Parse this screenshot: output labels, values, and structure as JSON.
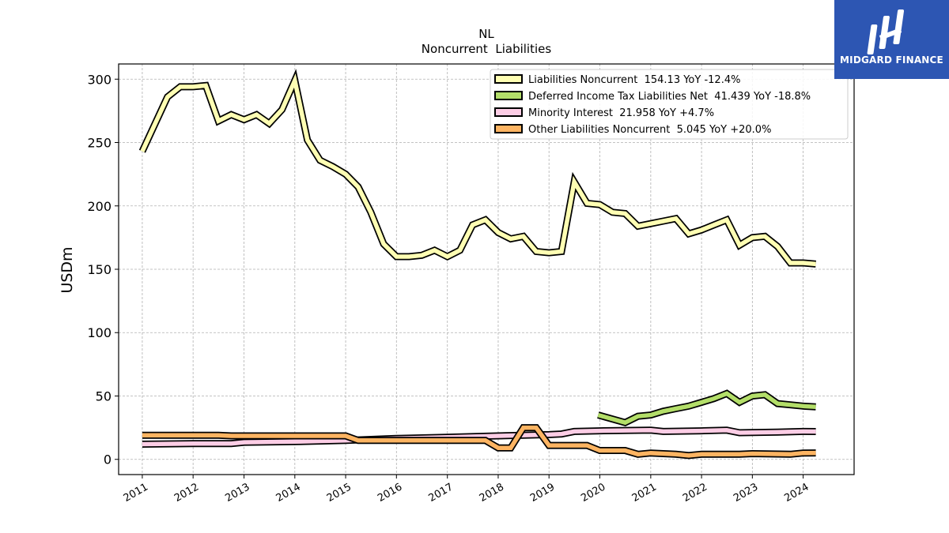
{
  "chart_data": {
    "type": "line",
    "title": "NL",
    "subtitle": "Noncurrent  Liabilities",
    "xlabel": "",
    "ylabel": "USDm",
    "xlim": [
      "2010-07-15",
      "2025-01-01"
    ],
    "ylim": [
      -12,
      312
    ],
    "yticks": [
      0,
      50,
      100,
      150,
      200,
      250,
      300
    ],
    "xticks": [
      "2011",
      "2012",
      "2013",
      "2014",
      "2015",
      "2016",
      "2017",
      "2018",
      "2019",
      "2020",
      "2021",
      "2022",
      "2023",
      "2024"
    ],
    "grid": true,
    "legend_position": "top-right",
    "series": [
      {
        "name": "Liabilities Noncurrent  154.13 YoY -12.4%",
        "color": "#ffffb3",
        "points": [
          [
            "2011-01-01",
            243
          ],
          [
            "2011-07-01",
            286
          ],
          [
            "2011-10-01",
            294
          ],
          [
            "2012-01-01",
            294
          ],
          [
            "2012-04-01",
            295
          ],
          [
            "2012-07-01",
            267
          ],
          [
            "2012-10-01",
            272
          ],
          [
            "2013-01-01",
            268
          ],
          [
            "2013-04-01",
            272
          ],
          [
            "2013-07-01",
            265
          ],
          [
            "2013-10-01",
            276
          ],
          [
            "2014-01-01",
            299
          ],
          [
            "2014-04-01",
            252
          ],
          [
            "2014-07-01",
            236
          ],
          [
            "2014-10-01",
            231
          ],
          [
            "2015-01-01",
            225
          ],
          [
            "2015-04-01",
            215
          ],
          [
            "2015-07-01",
            195
          ],
          [
            "2015-10-01",
            170
          ],
          [
            "2016-01-01",
            160
          ],
          [
            "2016-04-01",
            160
          ],
          [
            "2016-07-01",
            161
          ],
          [
            "2016-10-01",
            165
          ],
          [
            "2017-01-01",
            160
          ],
          [
            "2017-04-01",
            165
          ],
          [
            "2017-07-01",
            185
          ],
          [
            "2017-10-01",
            189
          ],
          [
            "2018-01-01",
            179
          ],
          [
            "2018-04-01",
            174
          ],
          [
            "2018-07-01",
            176
          ],
          [
            "2018-10-01",
            164
          ],
          [
            "2019-01-01",
            163
          ],
          [
            "2019-04-01",
            164
          ],
          [
            "2019-07-01",
            219
          ],
          [
            "2019-10-01",
            202
          ],
          [
            "2020-01-01",
            201
          ],
          [
            "2020-04-01",
            195
          ],
          [
            "2020-07-01",
            194
          ],
          [
            "2020-10-01",
            184
          ],
          [
            "2021-01-01",
            186
          ],
          [
            "2021-04-01",
            188
          ],
          [
            "2021-07-01",
            190
          ],
          [
            "2021-10-01",
            178
          ],
          [
            "2022-01-01",
            181
          ],
          [
            "2022-04-01",
            185
          ],
          [
            "2022-07-01",
            189
          ],
          [
            "2022-10-01",
            169
          ],
          [
            "2023-01-01",
            175
          ],
          [
            "2023-04-01",
            176
          ],
          [
            "2023-07-01",
            168
          ],
          [
            "2023-10-01",
            155
          ],
          [
            "2024-01-01",
            155
          ],
          [
            "2024-04-01",
            154.13
          ]
        ]
      },
      {
        "name": "Deferred Income Tax Liabilities Net  41.439 YoY -18.8%",
        "color": "#b3de69",
        "points": [
          [
            "2019-12-20",
            35
          ],
          [
            "2020-07-01",
            29
          ],
          [
            "2020-10-01",
            34
          ],
          [
            "2021-01-01",
            35
          ],
          [
            "2021-04-01",
            38
          ],
          [
            "2021-07-01",
            40
          ],
          [
            "2021-10-01",
            42
          ],
          [
            "2022-01-01",
            45
          ],
          [
            "2022-04-01",
            48
          ],
          [
            "2022-07-01",
            52
          ],
          [
            "2022-10-01",
            45
          ],
          [
            "2023-01-01",
            50
          ],
          [
            "2023-04-01",
            51
          ],
          [
            "2023-07-01",
            44
          ],
          [
            "2023-10-01",
            43
          ],
          [
            "2024-01-01",
            42
          ],
          [
            "2024-04-01",
            41.439
          ]
        ]
      },
      {
        "name": "Minority Interest  21.958 YoY +4.7%",
        "color": "#fccde5",
        "points": [
          [
            "2011-01-01",
            12
          ],
          [
            "2012-01-01",
            12.5
          ],
          [
            "2012-10-01",
            12.5
          ],
          [
            "2013-01-01",
            13.5
          ],
          [
            "2014-01-01",
            14
          ],
          [
            "2015-01-01",
            15
          ],
          [
            "2016-01-01",
            16.5
          ],
          [
            "2017-01-01",
            17.5
          ],
          [
            "2018-01-01",
            18.5
          ],
          [
            "2019-01-01",
            19.5
          ],
          [
            "2019-04-01",
            20
          ],
          [
            "2019-07-01",
            22
          ],
          [
            "2020-01-01",
            22.5
          ],
          [
            "2021-01-01",
            23
          ],
          [
            "2021-04-01",
            22
          ],
          [
            "2022-01-01",
            22.5
          ],
          [
            "2022-07-01",
            23
          ],
          [
            "2022-10-01",
            21
          ],
          [
            "2023-07-01",
            21.5
          ],
          [
            "2024-01-01",
            22
          ],
          [
            "2024-04-01",
            21.958
          ]
        ]
      },
      {
        "name": "Other Liabilities Noncurrent  5.045 YoY +20.0%",
        "color": "#fdb462",
        "points": [
          [
            "2011-01-01",
            19
          ],
          [
            "2011-10-01",
            19
          ],
          [
            "2012-07-01",
            19
          ],
          [
            "2012-10-01",
            18.5
          ],
          [
            "2015-01-01",
            18.5
          ],
          [
            "2015-04-01",
            15
          ],
          [
            "2017-10-01",
            15
          ],
          [
            "2018-01-01",
            9
          ],
          [
            "2018-04-01",
            9
          ],
          [
            "2018-07-01",
            25
          ],
          [
            "2018-10-01",
            25
          ],
          [
            "2019-01-01",
            11
          ],
          [
            "2019-10-01",
            11
          ],
          [
            "2020-01-01",
            7
          ],
          [
            "2020-07-01",
            7
          ],
          [
            "2020-10-01",
            4
          ],
          [
            "2021-01-01",
            5
          ],
          [
            "2021-07-01",
            4
          ],
          [
            "2021-10-01",
            3
          ],
          [
            "2022-01-01",
            4
          ],
          [
            "2022-07-01",
            4
          ],
          [
            "2022-10-01",
            4
          ],
          [
            "2023-01-01",
            4.5
          ],
          [
            "2023-10-01",
            4
          ],
          [
            "2024-01-01",
            5
          ],
          [
            "2024-04-01",
            5.045
          ]
        ]
      }
    ]
  },
  "logo": {
    "text": "MIDGARD FINANCE",
    "background": "#2d56b3"
  }
}
